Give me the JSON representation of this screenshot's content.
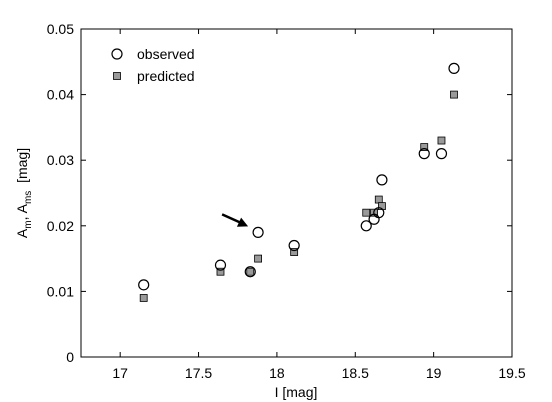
{
  "chart_data": {
    "type": "scatter",
    "xlabel": "I  [mag]",
    "ylabel": {
      "A1": "A",
      "A1_sub": "m",
      "sep": ", ",
      "A2": "A",
      "A2_sub": "ms",
      "unit": "  [mag]"
    },
    "xlim": [
      16.75,
      19.5
    ],
    "ylim": [
      0,
      0.05
    ],
    "xticks": [
      "17",
      "17.5",
      "18",
      "18.5",
      "19",
      "19.5"
    ],
    "yticks": [
      "0",
      "0.01",
      "0.02",
      "0.03",
      "0.04",
      "0.05"
    ],
    "grid": false,
    "legend_position": "top-left",
    "series": [
      {
        "name": "observed",
        "marker": "open-circle",
        "color": "#000000",
        "points": [
          {
            "x": 17.15,
            "y": 0.011
          },
          {
            "x": 17.64,
            "y": 0.014
          },
          {
            "x": 17.83,
            "y": 0.013
          },
          {
            "x": 17.88,
            "y": 0.019
          },
          {
            "x": 18.11,
            "y": 0.017
          },
          {
            "x": 18.57,
            "y": 0.02
          },
          {
            "x": 18.62,
            "y": 0.021
          },
          {
            "x": 18.65,
            "y": 0.022
          },
          {
            "x": 18.67,
            "y": 0.027
          },
          {
            "x": 18.94,
            "y": 0.031
          },
          {
            "x": 19.05,
            "y": 0.031
          },
          {
            "x": 19.13,
            "y": 0.044
          }
        ]
      },
      {
        "name": "predicted",
        "marker": "filled-square",
        "color": "#9a9a9a",
        "points": [
          {
            "x": 17.15,
            "y": 0.009
          },
          {
            "x": 17.64,
            "y": 0.013
          },
          {
            "x": 17.83,
            "y": 0.013
          },
          {
            "x": 17.88,
            "y": 0.015
          },
          {
            "x": 18.11,
            "y": 0.016
          },
          {
            "x": 18.57,
            "y": 0.022
          },
          {
            "x": 18.62,
            "y": 0.022
          },
          {
            "x": 18.65,
            "y": 0.024
          },
          {
            "x": 18.67,
            "y": 0.023
          },
          {
            "x": 18.94,
            "y": 0.032
          },
          {
            "x": 19.05,
            "y": 0.033
          },
          {
            "x": 19.13,
            "y": 0.04
          }
        ]
      }
    ],
    "annotations": [
      {
        "type": "arrow",
        "target": {
          "x": 17.88,
          "y": 0.019
        },
        "color": "#000000"
      }
    ]
  }
}
